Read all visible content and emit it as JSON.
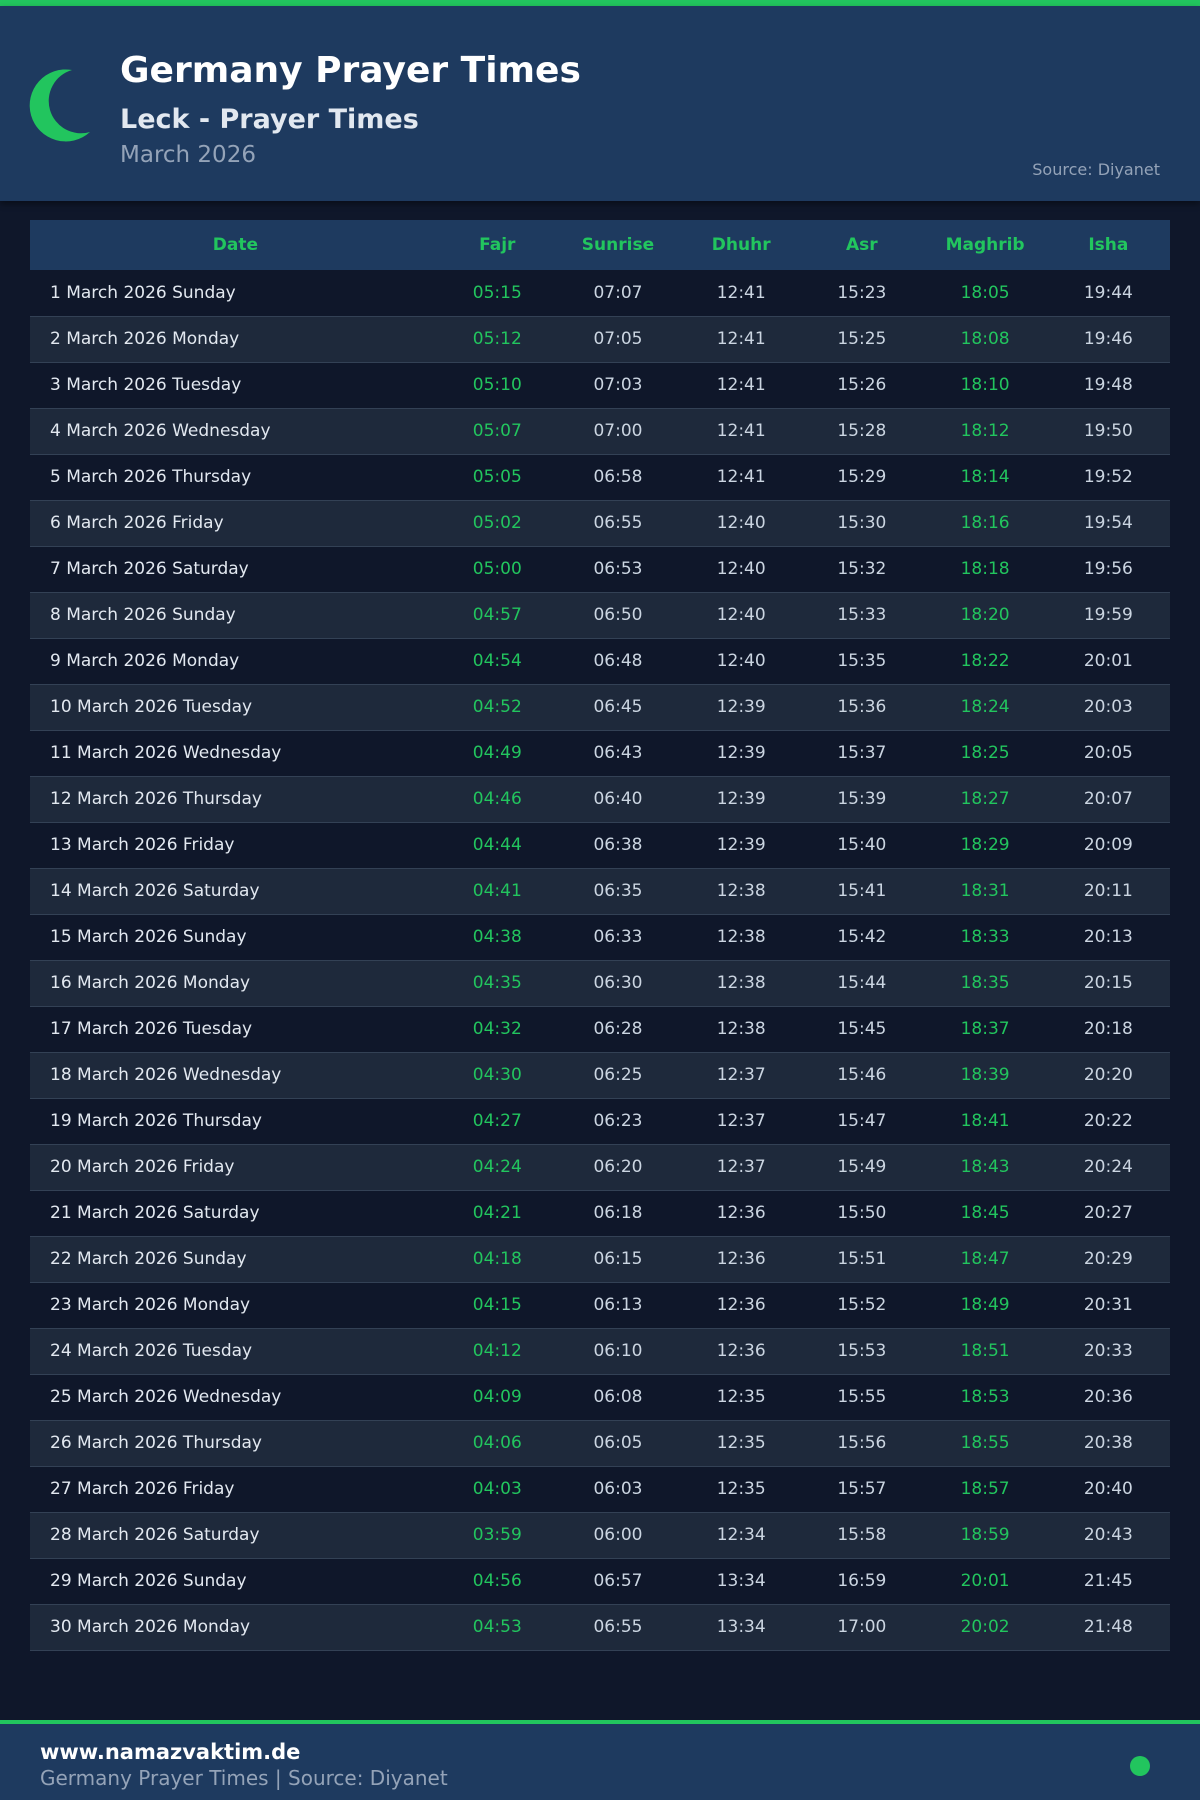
{
  "header": {
    "title": "Germany Prayer Times",
    "subtitle": "Leck - Prayer Times",
    "month": "March 2026",
    "source": "Source: Diyanet",
    "icon": "crescent-moon-icon",
    "accent": "#22c55e"
  },
  "table": {
    "columns": [
      "Date",
      "Fajr",
      "Sunrise",
      "Dhuhr",
      "Asr",
      "Maghrib",
      "Isha"
    ],
    "rows": [
      [
        "1 March 2026 Sunday",
        "05:15",
        "07:07",
        "12:41",
        "15:23",
        "18:05",
        "19:44"
      ],
      [
        "2 March 2026 Monday",
        "05:12",
        "07:05",
        "12:41",
        "15:25",
        "18:08",
        "19:46"
      ],
      [
        "3 March 2026 Tuesday",
        "05:10",
        "07:03",
        "12:41",
        "15:26",
        "18:10",
        "19:48"
      ],
      [
        "4 March 2026 Wednesday",
        "05:07",
        "07:00",
        "12:41",
        "15:28",
        "18:12",
        "19:50"
      ],
      [
        "5 March 2026 Thursday",
        "05:05",
        "06:58",
        "12:41",
        "15:29",
        "18:14",
        "19:52"
      ],
      [
        "6 March 2026 Friday",
        "05:02",
        "06:55",
        "12:40",
        "15:30",
        "18:16",
        "19:54"
      ],
      [
        "7 March 2026 Saturday",
        "05:00",
        "06:53",
        "12:40",
        "15:32",
        "18:18",
        "19:56"
      ],
      [
        "8 March 2026 Sunday",
        "04:57",
        "06:50",
        "12:40",
        "15:33",
        "18:20",
        "19:59"
      ],
      [
        "9 March 2026 Monday",
        "04:54",
        "06:48",
        "12:40",
        "15:35",
        "18:22",
        "20:01"
      ],
      [
        "10 March 2026 Tuesday",
        "04:52",
        "06:45",
        "12:39",
        "15:36",
        "18:24",
        "20:03"
      ],
      [
        "11 March 2026 Wednesday",
        "04:49",
        "06:43",
        "12:39",
        "15:37",
        "18:25",
        "20:05"
      ],
      [
        "12 March 2026 Thursday",
        "04:46",
        "06:40",
        "12:39",
        "15:39",
        "18:27",
        "20:07"
      ],
      [
        "13 March 2026 Friday",
        "04:44",
        "06:38",
        "12:39",
        "15:40",
        "18:29",
        "20:09"
      ],
      [
        "14 March 2026 Saturday",
        "04:41",
        "06:35",
        "12:38",
        "15:41",
        "18:31",
        "20:11"
      ],
      [
        "15 March 2026 Sunday",
        "04:38",
        "06:33",
        "12:38",
        "15:42",
        "18:33",
        "20:13"
      ],
      [
        "16 March 2026 Monday",
        "04:35",
        "06:30",
        "12:38",
        "15:44",
        "18:35",
        "20:15"
      ],
      [
        "17 March 2026 Tuesday",
        "04:32",
        "06:28",
        "12:38",
        "15:45",
        "18:37",
        "20:18"
      ],
      [
        "18 March 2026 Wednesday",
        "04:30",
        "06:25",
        "12:37",
        "15:46",
        "18:39",
        "20:20"
      ],
      [
        "19 March 2026 Thursday",
        "04:27",
        "06:23",
        "12:37",
        "15:47",
        "18:41",
        "20:22"
      ],
      [
        "20 March 2026 Friday",
        "04:24",
        "06:20",
        "12:37",
        "15:49",
        "18:43",
        "20:24"
      ],
      [
        "21 March 2026 Saturday",
        "04:21",
        "06:18",
        "12:36",
        "15:50",
        "18:45",
        "20:27"
      ],
      [
        "22 March 2026 Sunday",
        "04:18",
        "06:15",
        "12:36",
        "15:51",
        "18:47",
        "20:29"
      ],
      [
        "23 March 2026 Monday",
        "04:15",
        "06:13",
        "12:36",
        "15:52",
        "18:49",
        "20:31"
      ],
      [
        "24 March 2026 Tuesday",
        "04:12",
        "06:10",
        "12:36",
        "15:53",
        "18:51",
        "20:33"
      ],
      [
        "25 March 2026 Wednesday",
        "04:09",
        "06:08",
        "12:35",
        "15:55",
        "18:53",
        "20:36"
      ],
      [
        "26 March 2026 Thursday",
        "04:06",
        "06:05",
        "12:35",
        "15:56",
        "18:55",
        "20:38"
      ],
      [
        "27 March 2026 Friday",
        "04:03",
        "06:03",
        "12:35",
        "15:57",
        "18:57",
        "20:40"
      ],
      [
        "28 March 2026 Saturday",
        "03:59",
        "06:00",
        "12:34",
        "15:58",
        "18:59",
        "20:43"
      ],
      [
        "29 March 2026 Sunday",
        "04:56",
        "06:57",
        "13:34",
        "16:59",
        "20:01",
        "21:45"
      ],
      [
        "30 March 2026 Monday",
        "04:53",
        "06:55",
        "13:34",
        "17:00",
        "20:02",
        "21:48"
      ]
    ]
  },
  "footer": {
    "site": "www.namazvaktim.de",
    "subtitle": "Germany Prayer Times | Source: Diyanet"
  }
}
